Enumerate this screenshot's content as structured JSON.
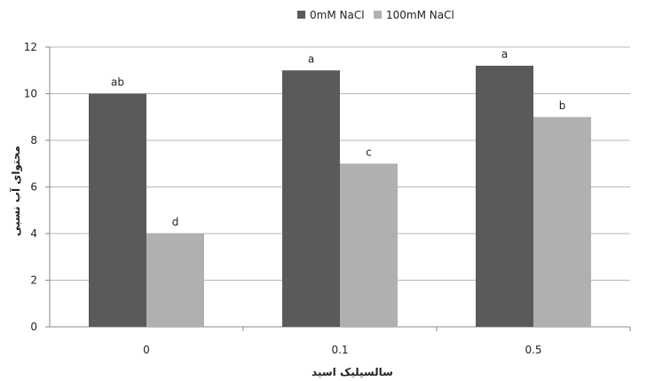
{
  "chart_data": {
    "type": "bar",
    "categories": [
      "0",
      "0.1",
      "0.5"
    ],
    "series": [
      {
        "name": "0mM NaCl",
        "values": [
          10.0,
          11.0,
          11.2
        ],
        "labels": [
          "ab",
          "a",
          "a"
        ],
        "color": "#5a5a5a"
      },
      {
        "name": "100mM NaCl",
        "values": [
          4.0,
          7.0,
          9.0
        ],
        "labels": [
          "d",
          "c",
          "b"
        ],
        "color": "#b0b0b0"
      }
    ],
    "xlabel": "سالسیلیک اسید",
    "ylabel": "محتوای آب نسبی",
    "ylim": [
      0,
      12
    ],
    "yticks": [
      "0",
      "2",
      "4",
      "6",
      "8",
      "10",
      "12"
    ],
    "grid": true,
    "legend": "top-center"
  }
}
